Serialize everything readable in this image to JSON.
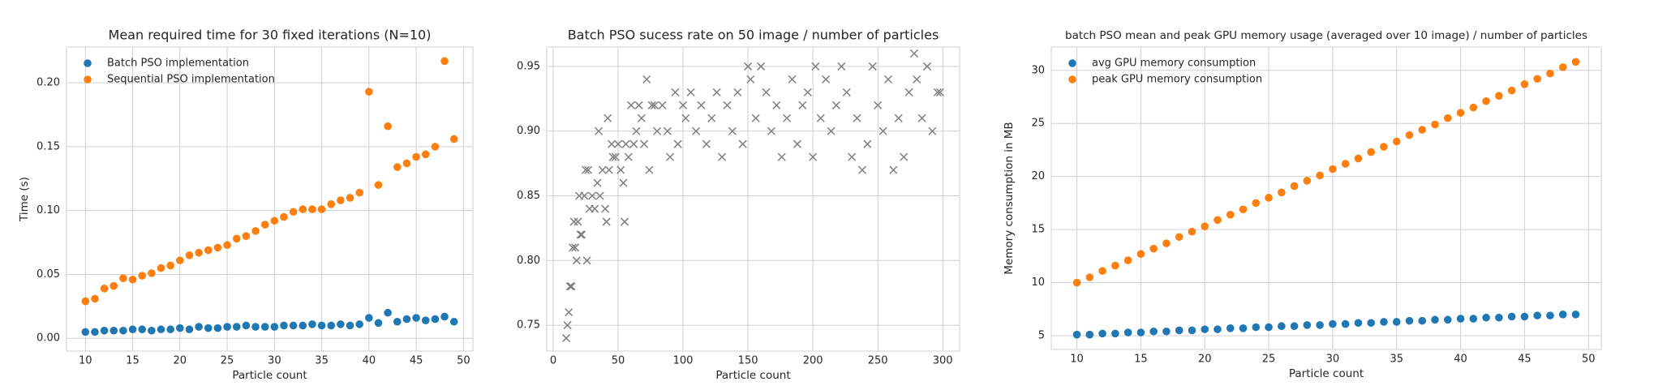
{
  "chart_data": [
    {
      "type": "scatter",
      "title": "Mean required time for 30 fixed iterations (N=10)",
      "xlabel": "Particle count",
      "ylabel": "Time (s)",
      "x": [
        10,
        11,
        12,
        13,
        14,
        15,
        16,
        17,
        18,
        19,
        20,
        21,
        22,
        23,
        24,
        25,
        26,
        27,
        28,
        29,
        30,
        31,
        32,
        33,
        34,
        35,
        36,
        37,
        38,
        39,
        40,
        41,
        42,
        43,
        44,
        45,
        46,
        47,
        48,
        49
      ],
      "series": [
        {
          "name": "Batch PSO implementation",
          "color": "#1f77b4",
          "values": [
            0.005,
            0.005,
            0.006,
            0.006,
            0.006,
            0.007,
            0.007,
            0.006,
            0.007,
            0.007,
            0.008,
            0.007,
            0.009,
            0.008,
            0.008,
            0.009,
            0.009,
            0.01,
            0.009,
            0.009,
            0.009,
            0.01,
            0.01,
            0.01,
            0.011,
            0.01,
            0.01,
            0.011,
            0.01,
            0.011,
            0.016,
            0.012,
            0.02,
            0.013,
            0.015,
            0.016,
            0.014,
            0.015,
            0.017,
            0.013
          ]
        },
        {
          "name": "Sequential PSO implementation",
          "color": "#ff7f0e",
          "values": [
            0.029,
            0.031,
            0.039,
            0.041,
            0.047,
            0.046,
            0.049,
            0.051,
            0.055,
            0.057,
            0.061,
            0.065,
            0.067,
            0.069,
            0.071,
            0.073,
            0.078,
            0.08,
            0.084,
            0.089,
            0.092,
            0.095,
            0.099,
            0.101,
            0.101,
            0.101,
            0.105,
            0.108,
            0.11,
            0.114,
            0.193,
            0.12,
            0.166,
            0.134,
            0.137,
            0.142,
            0.144,
            0.15,
            0.217,
            0.156
          ]
        }
      ],
      "xlim": [
        8,
        51
      ],
      "ylim": [
        -0.01,
        0.228
      ],
      "xticks": [
        10,
        15,
        20,
        25,
        30,
        35,
        40,
        45,
        50
      ],
      "yticks": [
        {
          "value": 0,
          "label": "0.00"
        },
        {
          "value": 0.05,
          "label": "0.05"
        },
        {
          "value": 0.1,
          "label": "0.10"
        },
        {
          "value": 0.15,
          "label": "0.15"
        },
        {
          "value": 0.2,
          "label": "0.20"
        }
      ],
      "grid": true,
      "legend": "upper left",
      "marker": "circle"
    },
    {
      "type": "scatter",
      "title": "Batch PSO sucess rate on 50 image / number of particles",
      "xlabel": "Particle count",
      "x": [
        10,
        11,
        12,
        13,
        14,
        15,
        16,
        17,
        18,
        19,
        20,
        21,
        22,
        24,
        25,
        26,
        27,
        28,
        30,
        32,
        34,
        35,
        36,
        38,
        40,
        41,
        42,
        43,
        45,
        46,
        48,
        50,
        52,
        54,
        55,
        56,
        58,
        60,
        62,
        64,
        66,
        68,
        70,
        72,
        74,
        76,
        78,
        80,
        84,
        88,
        90,
        94,
        96,
        100,
        102,
        106,
        110,
        114,
        118,
        122,
        126,
        130,
        134,
        138,
        142,
        146,
        150,
        152,
        156,
        160,
        164,
        168,
        172,
        176,
        180,
        184,
        188,
        192,
        196,
        200,
        202,
        206,
        210,
        214,
        218,
        222,
        226,
        230,
        234,
        238,
        242,
        246,
        250,
        254,
        258,
        262,
        266,
        270,
        274,
        278,
        280,
        284,
        288,
        292,
        296,
        298
      ],
      "series": [
        {
          "color": "#7f7f7f",
          "values": [
            0.74,
            0.75,
            0.76,
            0.78,
            0.78,
            0.81,
            0.83,
            0.81,
            0.8,
            0.83,
            0.85,
            0.82,
            0.82,
            0.85,
            0.87,
            0.8,
            0.87,
            0.84,
            0.85,
            0.84,
            0.86,
            0.9,
            0.85,
            0.87,
            0.84,
            0.83,
            0.91,
            0.87,
            0.89,
            0.88,
            0.88,
            0.89,
            0.87,
            0.86,
            0.83,
            0.89,
            0.88,
            0.92,
            0.89,
            0.9,
            0.92,
            0.91,
            0.89,
            0.94,
            0.87,
            0.92,
            0.92,
            0.9,
            0.92,
            0.9,
            0.88,
            0.93,
            0.89,
            0.92,
            0.91,
            0.93,
            0.9,
            0.92,
            0.89,
            0.91,
            0.93,
            0.88,
            0.92,
            0.9,
            0.93,
            0.89,
            0.95,
            0.94,
            0.91,
            0.95,
            0.93,
            0.9,
            0.92,
            0.88,
            0.91,
            0.94,
            0.89,
            0.92,
            0.93,
            0.88,
            0.95,
            0.91,
            0.94,
            0.9,
            0.92,
            0.95,
            0.93,
            0.88,
            0.91,
            0.87,
            0.89,
            0.95,
            0.92,
            0.9,
            0.94,
            0.87,
            0.91,
            0.88,
            0.93,
            0.96,
            0.94,
            0.91,
            0.95,
            0.9,
            0.93,
            0.93
          ]
        }
      ],
      "xlim": [
        -5,
        313
      ],
      "ylim": [
        0.73,
        0.965
      ],
      "xticks": [
        0,
        50,
        100,
        150,
        200,
        250,
        300
      ],
      "yticks": [
        {
          "value": 0.75,
          "label": "0.75"
        },
        {
          "value": 0.8,
          "label": "0.80"
        },
        {
          "value": 0.85,
          "label": "0.85"
        },
        {
          "value": 0.9,
          "label": "0.90"
        },
        {
          "value": 0.95,
          "label": "0.95"
        }
      ],
      "grid": true,
      "marker": "x"
    },
    {
      "type": "scatter",
      "title": "batch PSO mean and peak GPU memory usage (averaged over 10 image) / number of particles",
      "xlabel": "Particle count",
      "ylabel": "Memory consumption in MB",
      "x": [
        10,
        11,
        12,
        13,
        14,
        15,
        16,
        17,
        18,
        19,
        20,
        21,
        22,
        23,
        24,
        25,
        26,
        27,
        28,
        29,
        30,
        31,
        32,
        33,
        34,
        35,
        36,
        37,
        38,
        39,
        40,
        41,
        42,
        43,
        44,
        45,
        46,
        47,
        48,
        49
      ],
      "series": [
        {
          "name": "avg GPU memory consumption",
          "color": "#1f77b4",
          "values": [
            5.1,
            5.1,
            5.2,
            5.2,
            5.3,
            5.3,
            5.4,
            5.4,
            5.5,
            5.5,
            5.6,
            5.6,
            5.7,
            5.7,
            5.8,
            5.8,
            5.9,
            5.9,
            6.0,
            6.0,
            6.1,
            6.1,
            6.2,
            6.2,
            6.3,
            6.3,
            6.4,
            6.4,
            6.5,
            6.5,
            6.6,
            6.6,
            6.7,
            6.7,
            6.8,
            6.8,
            6.9,
            6.9,
            7.0,
            7.0
          ]
        },
        {
          "name": "peak  GPU memory consumption",
          "color": "#ff7f0e",
          "values": [
            10.0,
            10.5,
            11.1,
            11.6,
            12.1,
            12.7,
            13.2,
            13.7,
            14.3,
            14.8,
            15.3,
            15.9,
            16.4,
            16.9,
            17.5,
            18.0,
            18.5,
            19.1,
            19.6,
            20.1,
            20.7,
            21.2,
            21.7,
            22.3,
            22.8,
            23.3,
            23.9,
            24.4,
            24.9,
            25.5,
            26.0,
            26.5,
            27.1,
            27.6,
            28.1,
            28.7,
            29.2,
            29.7,
            30.3,
            30.8
          ]
        }
      ],
      "xlim": [
        8,
        51
      ],
      "ylim": [
        3.7,
        32.2
      ],
      "xticks": [
        10,
        15,
        20,
        25,
        30,
        35,
        40,
        45,
        50
      ],
      "yticks": [
        5,
        10,
        15,
        20,
        25,
        30
      ],
      "grid": true,
      "legend": "upper left",
      "marker": "circle"
    }
  ]
}
